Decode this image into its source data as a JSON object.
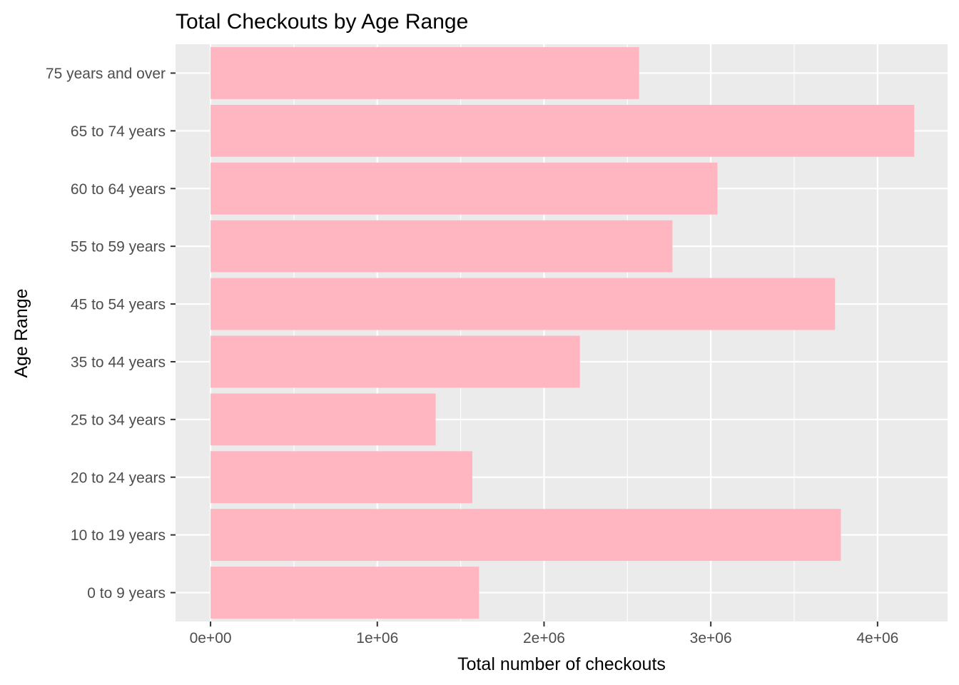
{
  "chart_data": {
    "type": "bar",
    "orientation": "horizontal",
    "title": "Total Checkouts by Age Range",
    "xlabel": "Total number of checkouts",
    "ylabel": "Age Range",
    "categories": [
      "0 to 9 years",
      "10 to 19 years",
      "20 to 24 years",
      "25 to 34 years",
      "35 to 44 years",
      "45 to 54 years",
      "55 to 59 years",
      "60 to 64 years",
      "65 to 74 years",
      "75 years and over"
    ],
    "values": [
      1610000,
      3780000,
      1570000,
      1350000,
      2215000,
      3745000,
      2770000,
      3040000,
      4220000,
      2570000
    ],
    "xlim": [
      -210000,
      4420000
    ],
    "x_ticks": [
      0,
      1000000,
      2000000,
      3000000,
      4000000
    ],
    "x_tick_labels": [
      "0e+00",
      "1e+06",
      "2e+06",
      "3e+06",
      "4e+06"
    ],
    "grid": true,
    "colors": {
      "bar": "#ffb6c1",
      "panel": "#ebebeb",
      "grid": "#ffffff"
    }
  }
}
